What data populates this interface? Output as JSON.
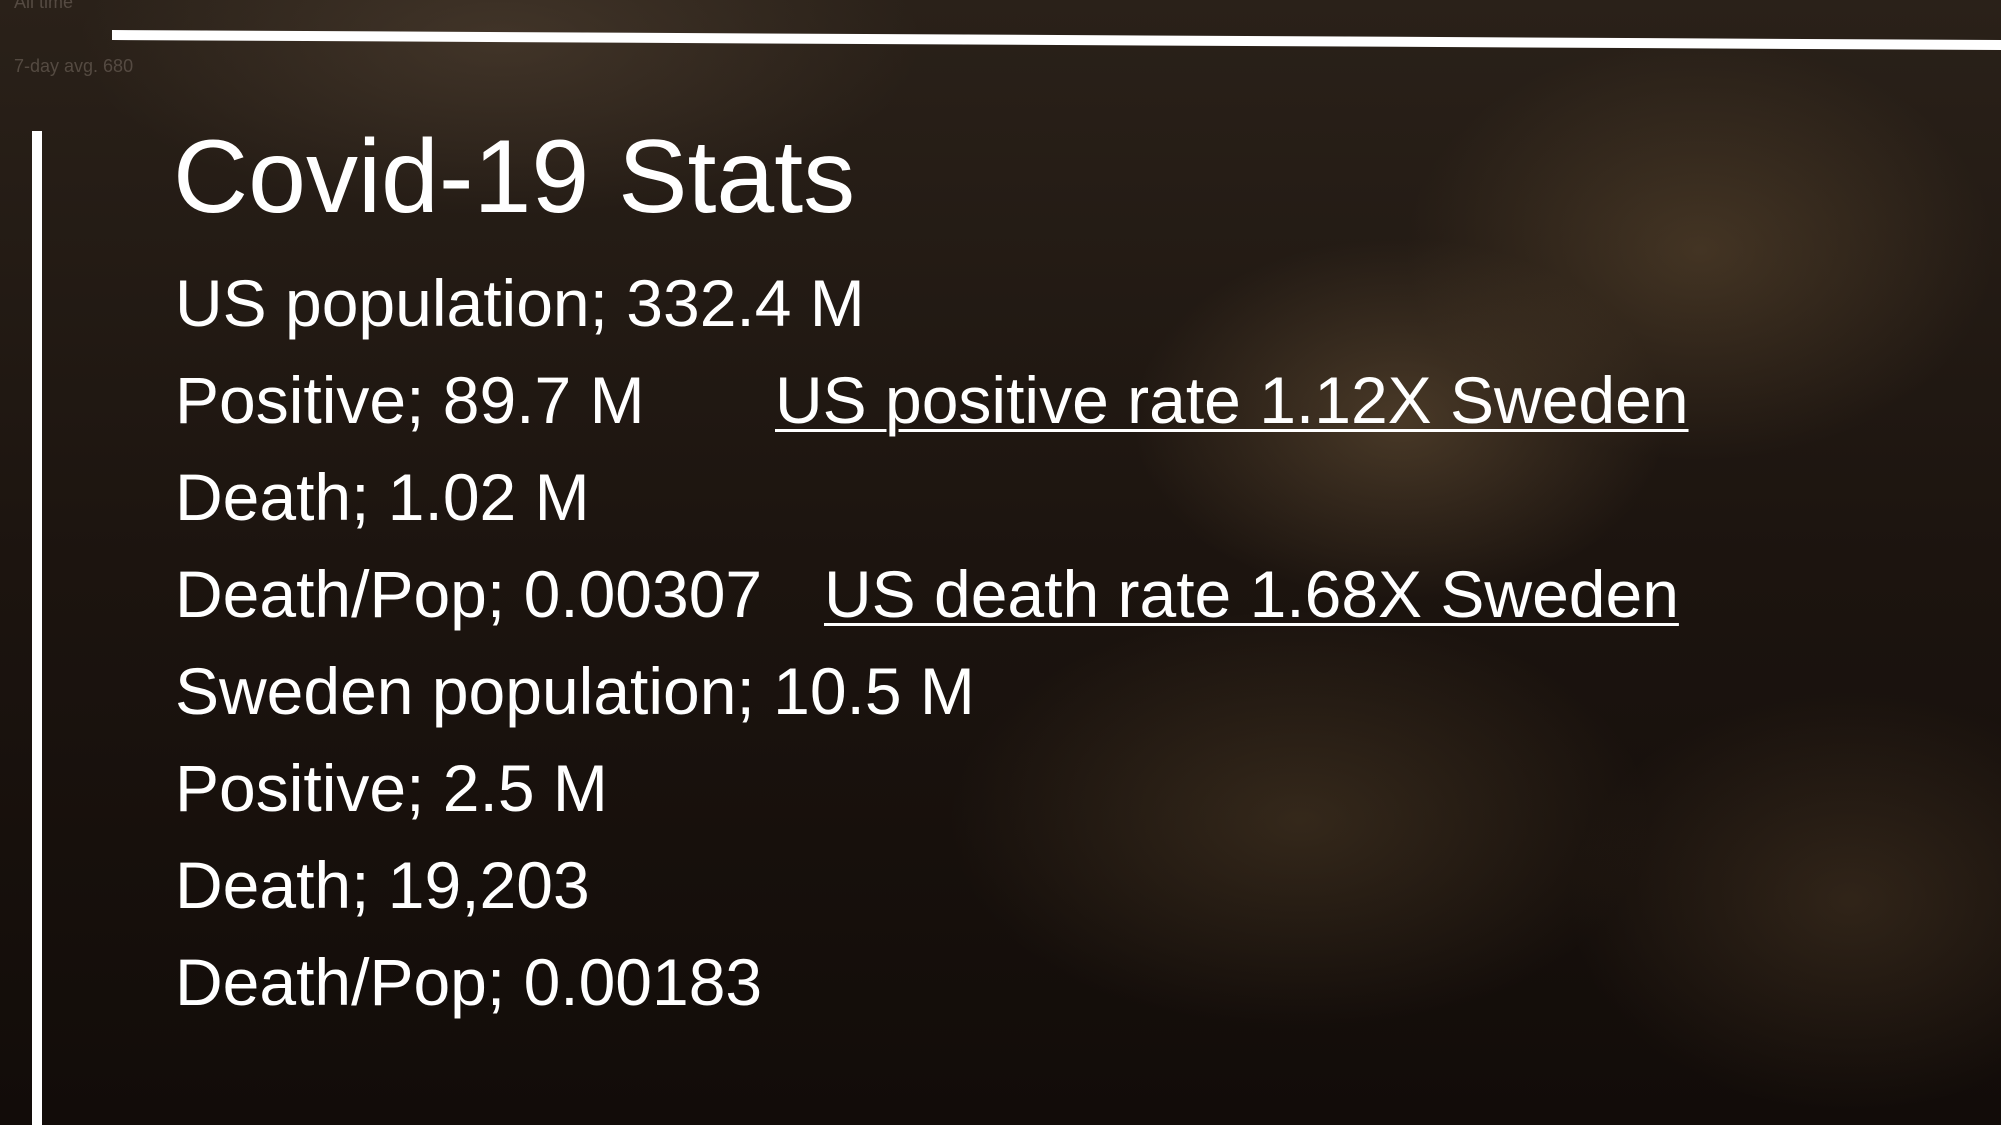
{
  "corner_note": [
    "All time",
    "7-day avg. 680"
  ],
  "slide": {
    "title": "Covid-19 Stats",
    "lines": [
      {
        "text": "US population; 332.4 M"
      },
      {
        "text": "Positive; 89.7 M",
        "link": "US positive rate 1.12X Sweden"
      },
      {
        "text": "Death; 1.02 M"
      },
      {
        "text": "Death/Pop; 0.00307",
        "link": "US death rate 1.68X Sweden"
      },
      {
        "text": "Sweden population; 10.5 M"
      },
      {
        "text": "Positive; 2.5 M"
      },
      {
        "text": "Death; 19,203"
      },
      {
        "text": "Death/Pop; 0.00183"
      }
    ]
  }
}
